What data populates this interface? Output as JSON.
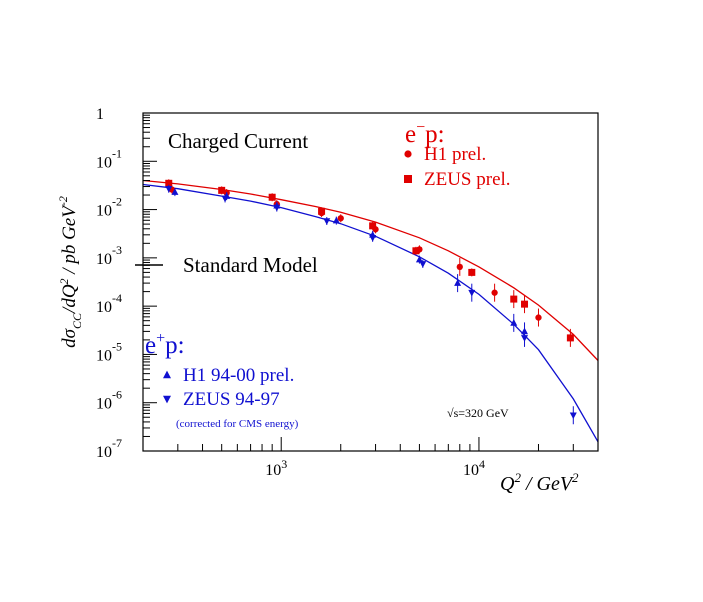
{
  "chart_data": {
    "type": "scatter",
    "title": "Charged Current",
    "xlabel": "Q² / GeV²",
    "ylabel": "dσ_CC/dQ² / pb GeV⁻²",
    "xscale": "log",
    "yscale": "log",
    "xlim": [
      200,
      40000
    ],
    "ylim": [
      1e-07,
      1
    ],
    "x_ticks": [
      {
        "value": 1000,
        "base": "10",
        "exp": "3"
      },
      {
        "value": 10000,
        "base": "10",
        "exp": "4"
      }
    ],
    "y_ticks": [
      {
        "value": 1,
        "base": "1",
        "exp": ""
      },
      {
        "value": 0.1,
        "base": "10",
        "exp": "-1"
      },
      {
        "value": 0.01,
        "base": "10",
        "exp": "-2"
      },
      {
        "value": 0.001,
        "base": "10",
        "exp": "-3"
      },
      {
        "value": 0.0001,
        "base": "10",
        "exp": "-4"
      },
      {
        "value": 1e-05,
        "base": "10",
        "exp": "-5"
      },
      {
        "value": 1e-06,
        "base": "10",
        "exp": "-6"
      },
      {
        "value": 1e-07,
        "base": "10",
        "exp": "-7"
      }
    ],
    "annotation": "√s=320 GeV",
    "model_label": "Standard Model",
    "groups": [
      {
        "label_base": "e",
        "label_sup": "−",
        "label_rest": "p:",
        "color": "#e00000"
      },
      {
        "label_base": "e",
        "label_sup": "+",
        "label_rest": "p:",
        "color": "#1010d0",
        "note": "(corrected for CMS energy)"
      }
    ],
    "series": [
      {
        "name": "H1 prel.",
        "group": 0,
        "color": "#e00000",
        "marker": "circle",
        "x": [
          280,
          530,
          950,
          1600,
          2000,
          3000,
          5000,
          8000,
          12000,
          20000
        ],
        "y": [
          0.026,
          0.022,
          0.013,
          0.0085,
          0.0066,
          0.0039,
          0.0015,
          0.00065,
          0.00019,
          5.8e-05
        ]
      },
      {
        "name": "ZEUS prel.",
        "group": 0,
        "color": "#e00000",
        "marker": "square",
        "x": [
          270,
          500,
          900,
          1600,
          2900,
          4800,
          9200,
          15000,
          17000,
          29000
        ],
        "y": [
          0.035,
          0.025,
          0.018,
          0.0092,
          0.0046,
          0.0014,
          0.0005,
          0.00014,
          0.00011,
          2.2e-05
        ]
      },
      {
        "name": "H1 94-00 prel.",
        "group": 1,
        "color": "#1010d0",
        "marker": "triangle-up",
        "x": [
          290,
          530,
          950,
          1900,
          2900,
          5000,
          7800,
          15000,
          17000
        ],
        "y": [
          0.023,
          0.019,
          0.012,
          0.0059,
          0.003,
          0.00092,
          0.0003,
          4.5e-05,
          3e-05
        ]
      },
      {
        "name": "ZEUS 94-97",
        "group": 1,
        "color": "#1010d0",
        "marker": "triangle-down",
        "x": [
          270,
          520,
          950,
          1700,
          2900,
          5200,
          9200,
          17000,
          30000
        ],
        "y": [
          0.027,
          0.017,
          0.011,
          0.0058,
          0.0026,
          0.00075,
          0.00019,
          2.2e-05,
          5.5e-07
        ]
      }
    ],
    "curves": [
      {
        "name": "Standard Model",
        "color": "#e00000",
        "x": [
          200,
          300,
          500,
          700,
          1000,
          1500,
          2000,
          3000,
          5000,
          7000,
          10000,
          15000,
          20000,
          30000,
          40000
        ],
        "y": [
          0.04,
          0.034,
          0.026,
          0.021,
          0.016,
          0.0115,
          0.0088,
          0.0055,
          0.0026,
          0.0014,
          0.00065,
          0.00024,
          0.000105,
          2.6e-05,
          7.5e-06
        ]
      },
      {
        "name": "Standard Model",
        "color": "#1010d0",
        "x": [
          200,
          300,
          500,
          700,
          1000,
          1500,
          2000,
          3000,
          5000,
          7000,
          10000,
          15000,
          20000,
          30000,
          40000
        ],
        "y": [
          0.033,
          0.027,
          0.019,
          0.015,
          0.011,
          0.0071,
          0.0051,
          0.0028,
          0.00105,
          0.00048,
          0.000175,
          4.2e-05,
          1.25e-05,
          1.2e-06,
          1.55e-07
        ]
      }
    ]
  }
}
